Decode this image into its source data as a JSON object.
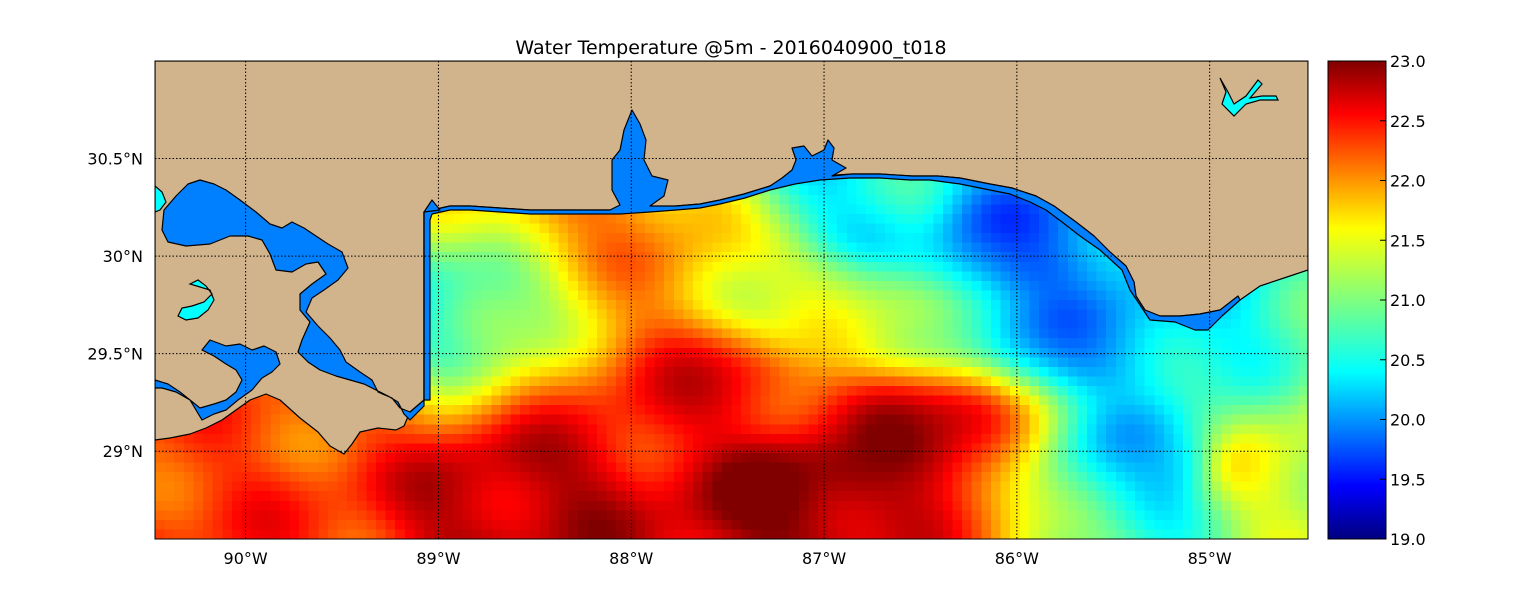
{
  "chart_data": {
    "type": "heatmap",
    "title": "Water Temperature @5m - 2016040900_t018",
    "map": {
      "lon_range": [
        -90.47,
        -84.49
      ],
      "lat_range": [
        28.55,
        31.0
      ],
      "meridians": [
        -90,
        -89,
        -88,
        -87,
        -86,
        -85
      ],
      "parallels": [
        29.0,
        29.5,
        30.0,
        30.5
      ],
      "grid": true,
      "grid_style": "dotted"
    },
    "x_tick_labels": [
      "90°W",
      "89°W",
      "88°W",
      "87°W",
      "86°W",
      "85°W"
    ],
    "y_tick_labels": [
      "29°N",
      "29.5°N",
      "30°N",
      "30.5°N"
    ],
    "colorbar": {
      "location": "right",
      "vmin": 19.0,
      "vmax": 23.0,
      "colormap": "jet",
      "ticks": [
        19.0,
        19.5,
        20.0,
        20.5,
        21.0,
        21.5,
        22.0,
        22.5,
        23.0
      ],
      "tick_labels": [
        "19.0",
        "19.5",
        "20.0",
        "20.5",
        "21.0",
        "21.5",
        "22.0",
        "22.5",
        "23.0"
      ]
    },
    "colors": {
      "land": "#d2b48c",
      "inland_water": "#0080ff",
      "lakes": "#00ffff",
      "coastline": "#000000"
    },
    "field_features": [
      {
        "feature": "warm core",
        "lon": -87.1,
        "lat": 28.8,
        "value": 23.0
      },
      {
        "feature": "warm filament",
        "lon": -86.5,
        "lat": 29.1,
        "value": 22.8
      },
      {
        "feature": "warm eddy",
        "lon": -88.6,
        "lat": 28.75,
        "value": 22.8
      },
      {
        "feature": "warm eddy",
        "lon": -87.6,
        "lat": 29.3,
        "value": 22.5
      },
      {
        "feature": "warm patch",
        "lon": -90.0,
        "lat": 28.62,
        "value": 22.3
      },
      {
        "feature": "cool pool",
        "lon": -86.0,
        "lat": 30.05,
        "value": 19.9
      },
      {
        "feature": "cool shelf",
        "lon": -85.7,
        "lat": 29.6,
        "value": 20.1
      },
      {
        "feature": "cool band",
        "lon": -85.3,
        "lat": 28.95,
        "value": 20.3
      },
      {
        "feature": "cool coastal",
        "lon": -86.8,
        "lat": 30.3,
        "value": 20.5
      },
      {
        "feature": "mixed",
        "lon": -89.0,
        "lat": 29.7,
        "value": 20.7
      },
      {
        "feature": "warm coastal strip",
        "lon": -89.7,
        "lat": 29.25,
        "value": 22.2
      },
      {
        "feature": "warm coastal strip",
        "lon": -88.0,
        "lat": 30.22,
        "value": 22.0
      },
      {
        "feature": "mixed",
        "lon": -86.9,
        "lat": 29.7,
        "value": 21.3
      },
      {
        "feature": "mixed",
        "lon": -84.7,
        "lat": 28.9,
        "value": 21.4
      }
    ]
  }
}
